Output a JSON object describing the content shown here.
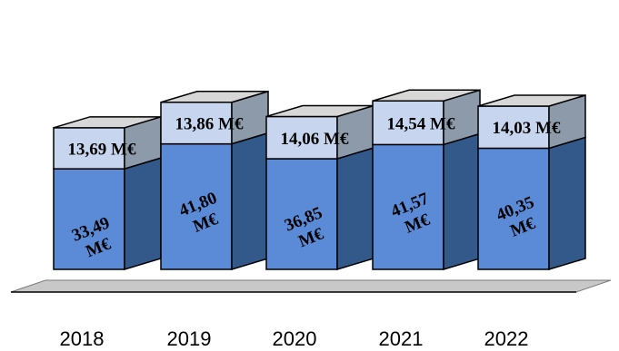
{
  "chart_data": {
    "type": "bar",
    "stacked": true,
    "three_d": true,
    "categories": [
      "2018",
      "2019",
      "2020",
      "2021",
      "2022"
    ],
    "series": [
      {
        "values": [
          33.49,
          41.8,
          36.85,
          41.57,
          40.35
        ],
        "labels": [
          "33,49 M€",
          "41,80 M€",
          "36,85 M€",
          "41,57 M€",
          "40,35 M€"
        ],
        "color": "#5b8bd6",
        "side_color": "#33598a"
      },
      {
        "values": [
          13.69,
          13.86,
          14.06,
          14.54,
          14.03
        ],
        "labels": [
          "13,69 M€",
          "13,86 M€",
          "14,06 M€",
          "14,54 M€",
          "14,03 M€"
        ],
        "color": "#c7d6ee",
        "side_color": "#8c9aaa"
      }
    ],
    "title": "",
    "xlabel": "",
    "ylabel": "",
    "grid": false,
    "legend": "none"
  }
}
